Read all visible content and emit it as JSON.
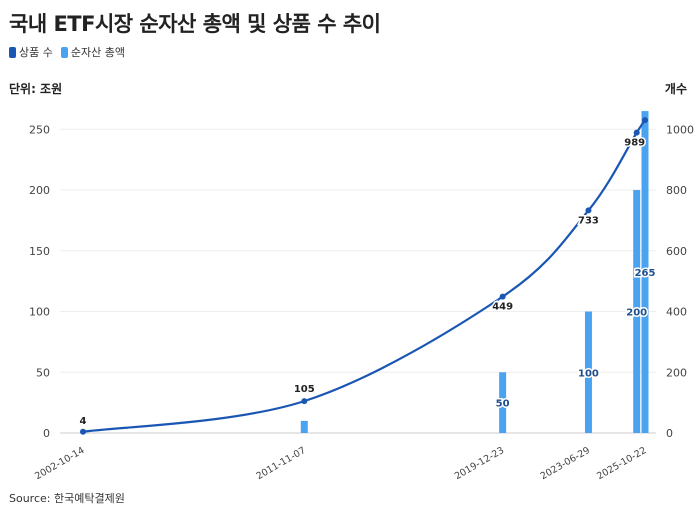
{
  "header": {
    "title": "국내 ETF시장 순자산 총액 및 상품 수 추이"
  },
  "legend": [
    {
      "label": "상품 수",
      "color": "#1a56b3"
    },
    {
      "label": "순자산 총액",
      "color": "#4aa3f0"
    }
  ],
  "axes": {
    "left_unit": "단위: 조원",
    "right_unit": "개수"
  },
  "source": "Source: 한국예탁결제원",
  "chart_data": {
    "type": "bar+line",
    "categories": [
      "2002-10-14",
      "2011-11-07",
      "2019-12-23",
      "2023-06-29",
      "2025-10-22"
    ],
    "x_ticks": [
      "2002-10-14",
      "2011-11-07",
      "2019-12-23",
      "2023-06-29",
      "2025-10-22"
    ],
    "series": [
      {
        "name": "순자산 총액",
        "kind": "bar",
        "axis": "left",
        "color": "#4aa3f0",
        "points": [
          {
            "date": "2011-11-07",
            "value": 10
          },
          {
            "date": "2019-12-23",
            "value": 50,
            "label": "50"
          },
          {
            "date": "2023-06-29",
            "value": 100,
            "label": "100"
          },
          {
            "date": "2025-06-20",
            "value": 200,
            "label": "200"
          },
          {
            "date": "2025-10-22",
            "value": 265,
            "label": "265"
          }
        ]
      },
      {
        "name": "상품 수",
        "kind": "line",
        "axis": "right",
        "color": "#1a56b3",
        "points": [
          {
            "date": "2002-10-14",
            "value": 4,
            "label": "4"
          },
          {
            "date": "2011-11-07",
            "value": 105,
            "label": "105"
          },
          {
            "date": "2019-12-23",
            "value": 449,
            "label": "449"
          },
          {
            "date": "2023-06-29",
            "value": 733,
            "label": "733"
          },
          {
            "date": "2025-06-20",
            "value": 989,
            "label": "989"
          },
          {
            "date": "2025-10-22",
            "value": 1030
          }
        ]
      }
    ],
    "y_left": {
      "min": 0,
      "max": 270,
      "ticks": [
        0,
        50,
        100,
        150,
        200,
        250
      ]
    },
    "y_right": {
      "min": 0,
      "max": 1080,
      "ticks": [
        0,
        200,
        400,
        600,
        800,
        1000
      ]
    },
    "grid": "horizontal",
    "legend_position": "top-left"
  }
}
